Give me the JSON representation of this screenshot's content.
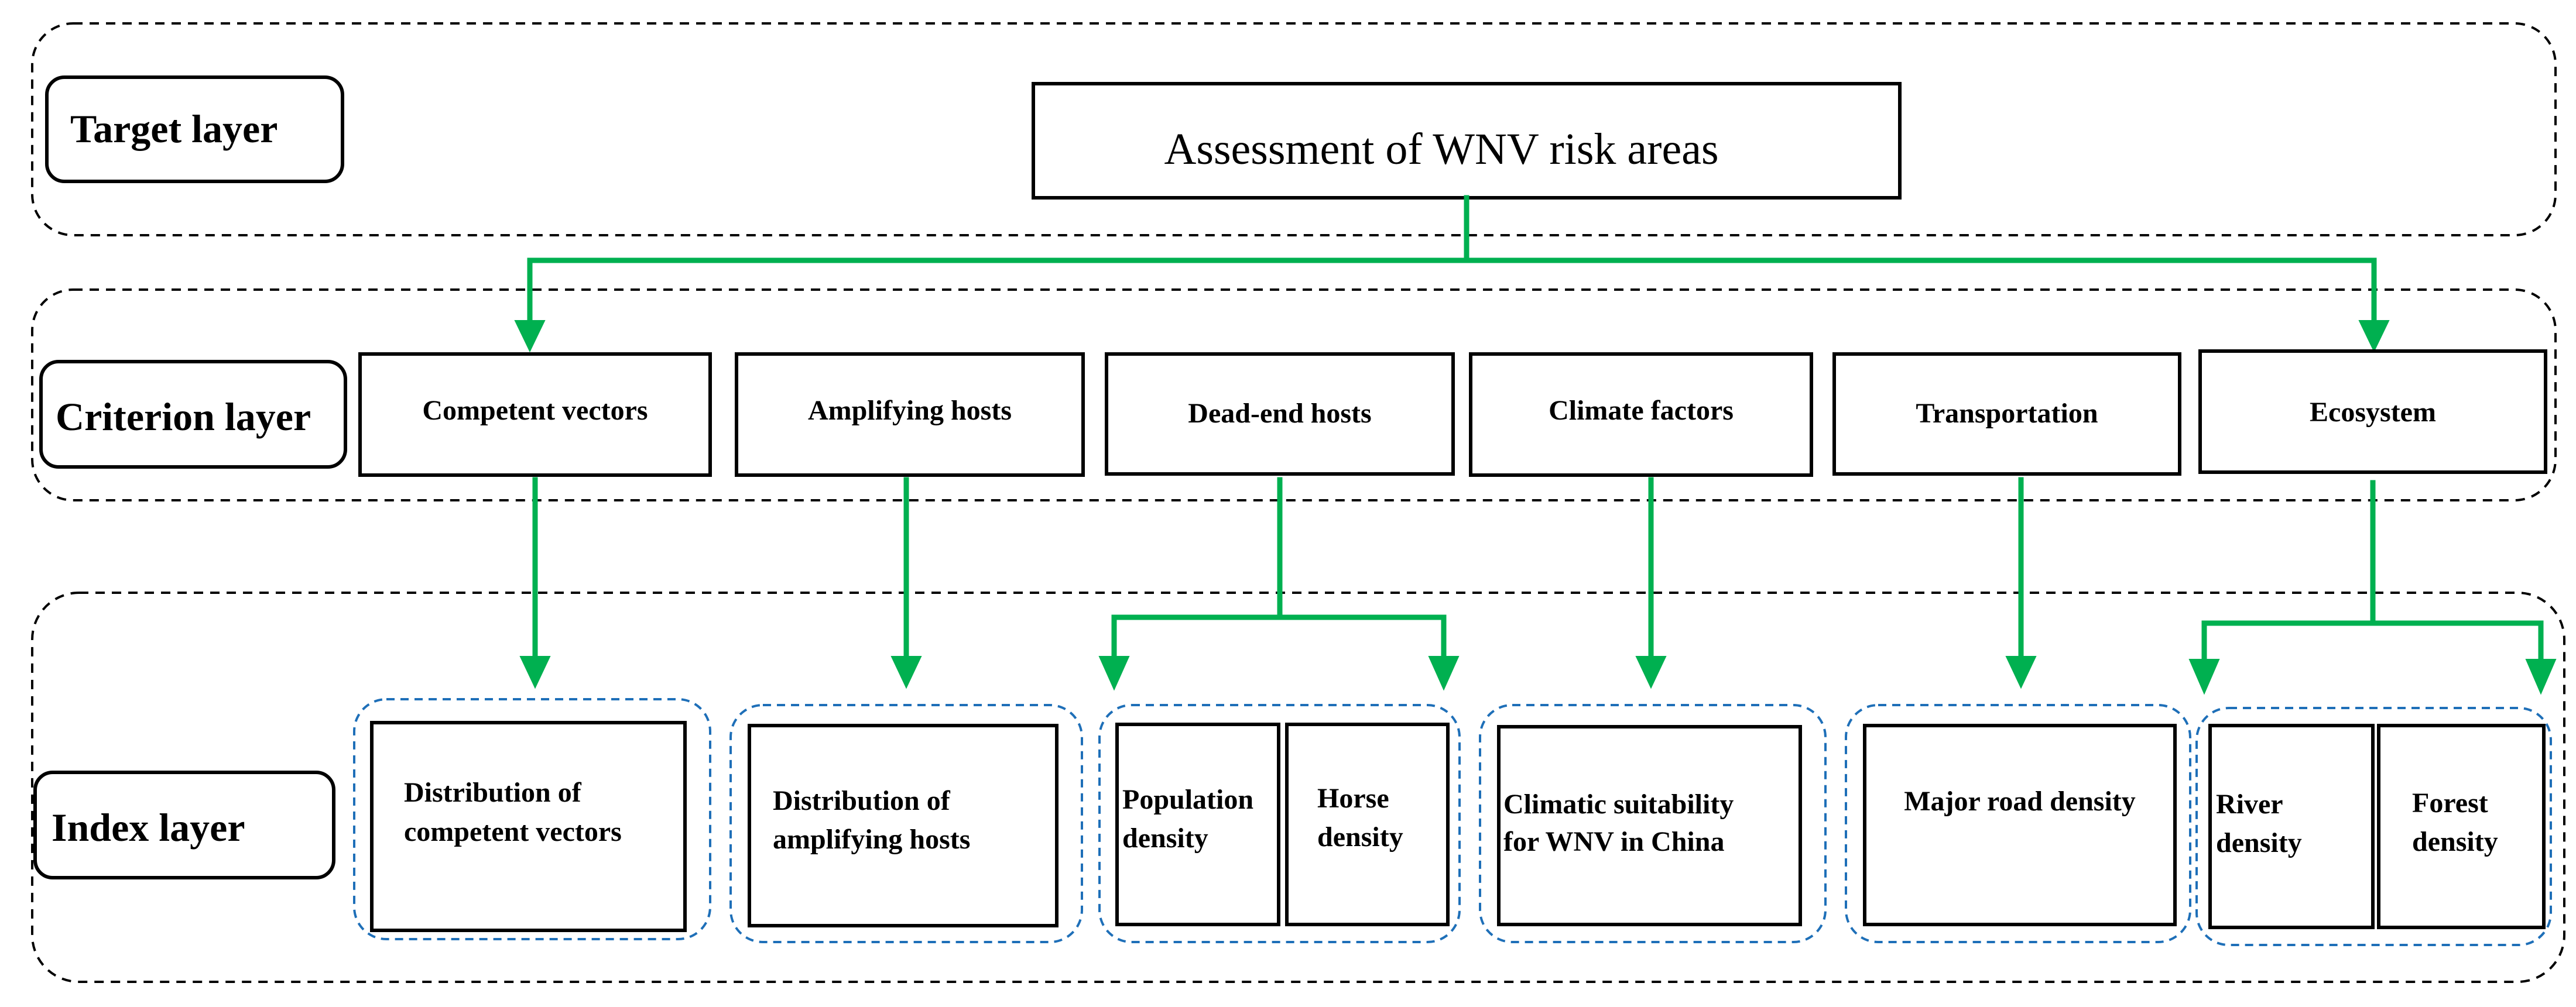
{
  "target": {
    "layer_label": "Target layer",
    "title": "Assessment of WNV risk areas"
  },
  "criterion": {
    "layer_label": "Criterion layer",
    "items": [
      "Competent vectors",
      "Amplifying hosts",
      "Dead-end hosts",
      "Climate factors",
      "Transportation",
      "Ecosystem"
    ]
  },
  "index": {
    "layer_label": "Index layer",
    "groups": [
      {
        "items": [
          [
            "Distribution of",
            "competent vectors"
          ]
        ]
      },
      {
        "items": [
          [
            "Distribution of",
            "amplifying hosts"
          ]
        ]
      },
      {
        "items": [
          [
            "Population",
            "density"
          ],
          [
            "Horse",
            "density"
          ]
        ]
      },
      {
        "items": [
          [
            "Climatic suitability",
            "for WNV in China"
          ]
        ]
      },
      {
        "items": [
          [
            "Major road density"
          ]
        ]
      },
      {
        "items": [
          [
            "River",
            "density"
          ],
          [
            "Forest",
            "density"
          ]
        ]
      }
    ]
  },
  "colors": {
    "connector": "#00b050",
    "group_border": "#1e6fb8",
    "layer_border": "#000000"
  }
}
